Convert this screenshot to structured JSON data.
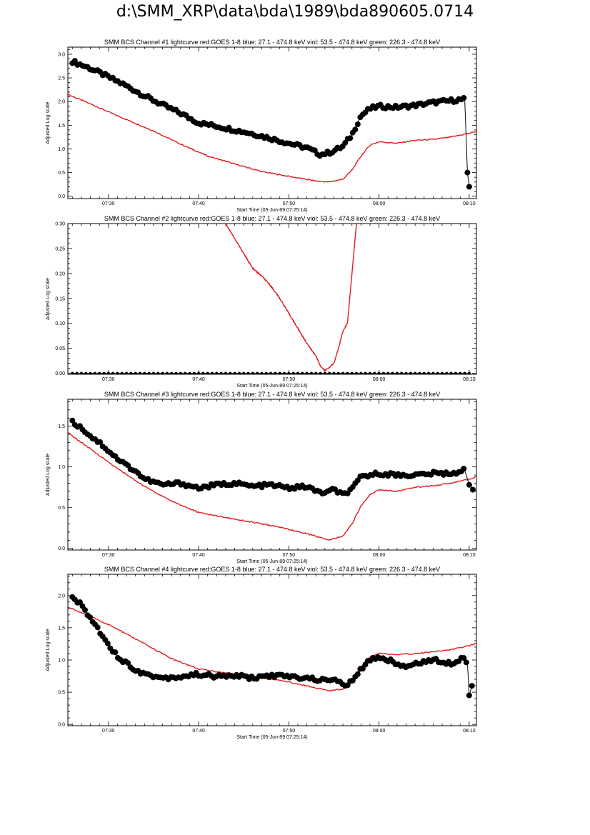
{
  "page_title": "d:\\SMM_XRP\\data\\bda\\1989\\bda890605.0714",
  "chart_data": [
    {
      "type": "line",
      "title": "SMM BCS Channel #1 lightcurve  red:GOES 1-8  blue: 27.1 - 474.8 keV  viol: 53.5 - 474.8 keV  green: 226.3 - 474.8 keV",
      "xlabel": "Start Time (05-Jun-89 07:25:14)",
      "ylabel": "Adjusted Log scale",
      "xlim": [
        25.5,
        70.8
      ],
      "ylim": [
        -0.05,
        3.15
      ],
      "xticks": [
        {
          "v": 30,
          "label": "07:30"
        },
        {
          "v": 40,
          "label": "07:40"
        },
        {
          "v": 50,
          "label": "07:50"
        },
        {
          "v": 60,
          "label": "08:00"
        },
        {
          "v": 70,
          "label": "08:10"
        }
      ],
      "yticks": [
        {
          "v": 0,
          "label": "0.0"
        },
        {
          "v": 0.5,
          "label": "0.5"
        },
        {
          "v": 1,
          "label": "1.0"
        },
        {
          "v": 1.5,
          "label": "1.5"
        },
        {
          "v": 2,
          "label": "2.0"
        },
        {
          "v": 2.5,
          "label": "2.5"
        },
        {
          "v": 3,
          "label": "3.0"
        }
      ],
      "series": [
        {
          "name": "GOES 1-8",
          "color": "#e31a1c",
          "style": "line",
          "x": [
            25.5,
            28,
            31,
            35,
            38,
            41,
            44,
            47,
            50,
            53,
            54.5,
            56,
            57,
            58,
            59,
            60,
            62,
            64,
            66,
            68,
            70,
            70.8
          ],
          "y": [
            2.15,
            1.95,
            1.7,
            1.38,
            1.1,
            0.85,
            0.68,
            0.52,
            0.42,
            0.32,
            0.3,
            0.36,
            0.55,
            0.85,
            1.08,
            1.15,
            1.12,
            1.18,
            1.2,
            1.25,
            1.33,
            1.37
          ]
        },
        {
          "name": "BCS",
          "color": "#000000",
          "style": "markers+line",
          "x": [
            26,
            28,
            30,
            32,
            34,
            36,
            38,
            40,
            42,
            44,
            46,
            48,
            50,
            52,
            53.5,
            54.5,
            56,
            57,
            58,
            59,
            60,
            62,
            64,
            66,
            68,
            69.5,
            69.8,
            70
          ],
          "y": [
            2.85,
            2.7,
            2.52,
            2.33,
            2.12,
            1.93,
            1.75,
            1.55,
            1.48,
            1.4,
            1.32,
            1.22,
            1.12,
            1.02,
            0.88,
            0.92,
            1.05,
            1.3,
            1.7,
            1.85,
            1.9,
            1.88,
            1.92,
            1.98,
            2.02,
            2.05,
            0.5,
            0.2
          ]
        }
      ]
    },
    {
      "type": "line",
      "title": "SMM BCS Channel #2 lightcurve  red:GOES 1-8  blue: 27.1 - 474.8 keV  viol: 53.5 - 474.8 keV  green: 226.3 - 474.8 keV",
      "xlabel": "Start Time (05-Jun-89 07:25:14)",
      "ylabel": "Adjusted Log scale",
      "xlim": [
        25.5,
        70.8
      ],
      "ylim": [
        -0.002,
        0.3
      ],
      "xticks": [
        {
          "v": 30,
          "label": "07:30"
        },
        {
          "v": 40,
          "label": "07:40"
        },
        {
          "v": 50,
          "label": "07:50"
        },
        {
          "v": 60,
          "label": "08:00"
        },
        {
          "v": 70,
          "label": "08:10"
        }
      ],
      "yticks": [
        {
          "v": 0,
          "label": "0.00"
        },
        {
          "v": 0.05,
          "label": "0.05"
        },
        {
          "v": 0.1,
          "label": "0.10"
        },
        {
          "v": 0.15,
          "label": "0.15"
        },
        {
          "v": 0.2,
          "label": "0.20"
        },
        {
          "v": 0.25,
          "label": "0.25"
        },
        {
          "v": 0.3,
          "label": "0.30"
        }
      ],
      "series": [
        {
          "name": "GOES 1-8",
          "color": "#e31a1c",
          "style": "line",
          "x": [
            43,
            44,
            45,
            46,
            47,
            48,
            49,
            50,
            51,
            52,
            53,
            53.5,
            54,
            54.5,
            55,
            55.5,
            56,
            56.5,
            57,
            57.5
          ],
          "y": [
            0.3,
            0.27,
            0.24,
            0.21,
            0.195,
            0.175,
            0.15,
            0.12,
            0.09,
            0.06,
            0.035,
            0.015,
            0.005,
            0.012,
            0.02,
            0.05,
            0.085,
            0.1,
            0.2,
            0.3
          ]
        },
        {
          "name": "BCS",
          "color": "#000000",
          "style": "markers+line",
          "x": [
            26,
            70
          ],
          "y": [
            0,
            0
          ]
        }
      ]
    },
    {
      "type": "line",
      "title": "SMM BCS Channel #3 lightcurve  red:GOES 1-8  blue: 27.1 - 474.8 keV  viol: 53.5 - 474.8 keV  green: 226.3 - 474.8 keV",
      "xlabel": "Start Time (05-Jun-89 07:25:14)",
      "ylabel": "Adjusted Log scale",
      "xlim": [
        25.5,
        70.8
      ],
      "ylim": [
        -0.02,
        1.83
      ],
      "xticks": [
        {
          "v": 30,
          "label": "07:30"
        },
        {
          "v": 40,
          "label": "07:40"
        },
        {
          "v": 50,
          "label": "07:50"
        },
        {
          "v": 60,
          "label": "08:00"
        },
        {
          "v": 70,
          "label": "08:10"
        }
      ],
      "yticks": [
        {
          "v": 0,
          "label": "0.0"
        },
        {
          "v": 0.5,
          "label": "0.5"
        },
        {
          "v": 1,
          "label": "1.0"
        },
        {
          "v": 1.5,
          "label": "1.5"
        }
      ],
      "series": [
        {
          "name": "GOES 1-8",
          "color": "#e31a1c",
          "style": "line",
          "x": [
            25.5,
            28,
            31,
            34,
            37,
            40,
            43,
            46,
            49,
            52,
            54.5,
            56,
            57,
            58,
            59,
            60,
            62,
            64,
            66,
            68,
            70,
            70.8
          ],
          "y": [
            1.42,
            1.22,
            0.98,
            0.76,
            0.58,
            0.44,
            0.38,
            0.32,
            0.26,
            0.18,
            0.1,
            0.15,
            0.3,
            0.52,
            0.66,
            0.72,
            0.7,
            0.75,
            0.77,
            0.8,
            0.85,
            0.88
          ]
        },
        {
          "name": "BCS",
          "color": "#000000",
          "style": "markers+line",
          "x": [
            26,
            27,
            28,
            29,
            30,
            31,
            32,
            33,
            34,
            36,
            38,
            40,
            42,
            44,
            46,
            48,
            50,
            52,
            53,
            54,
            55,
            56,
            57,
            58,
            59,
            60,
            62,
            64,
            66,
            68,
            69.5,
            70,
            70.4
          ],
          "y": [
            1.55,
            1.48,
            1.38,
            1.3,
            1.2,
            1.1,
            1.02,
            0.95,
            0.85,
            0.78,
            0.8,
            0.74,
            0.78,
            0.8,
            0.76,
            0.78,
            0.74,
            0.76,
            0.7,
            0.68,
            0.72,
            0.66,
            0.72,
            0.88,
            0.9,
            0.92,
            0.9,
            0.9,
            0.92,
            0.92,
            0.96,
            0.78,
            0.72
          ]
        }
      ]
    },
    {
      "type": "line",
      "title": "SMM BCS Channel #4 lightcurve  red:GOES 1-8  blue: 27.1 - 474.8 keV  viol: 53.5 - 474.8 keV  green: 226.3 - 474.8 keV",
      "xlabel": "Start Time (05-Jun-89 07:25:14)",
      "ylabel": "Adjusted Log scale",
      "xlim": [
        25.5,
        70.8
      ],
      "ylim": [
        -0.02,
        2.33
      ],
      "xticks": [
        {
          "v": 30,
          "label": "07:30"
        },
        {
          "v": 40,
          "label": "07:40"
        },
        {
          "v": 50,
          "label": "07:50"
        },
        {
          "v": 60,
          "label": "08:00"
        },
        {
          "v": 70,
          "label": "08:10"
        }
      ],
      "yticks": [
        {
          "v": 0,
          "label": "0.0"
        },
        {
          "v": 0.5,
          "label": "0.5"
        },
        {
          "v": 1,
          "label": "1.0"
        },
        {
          "v": 1.5,
          "label": "1.5"
        },
        {
          "v": 2,
          "label": "2.0"
        }
      ],
      "series": [
        {
          "name": "GOES 1-8",
          "color": "#e31a1c",
          "style": "line",
          "x": [
            25.5,
            28,
            31,
            34,
            37,
            40,
            43,
            46,
            49,
            52,
            54.5,
            56,
            57,
            58,
            59,
            60,
            62,
            64,
            66,
            68,
            70,
            70.8
          ],
          "y": [
            1.82,
            1.68,
            1.48,
            1.25,
            1.02,
            0.86,
            0.8,
            0.74,
            0.68,
            0.6,
            0.52,
            0.55,
            0.68,
            0.9,
            1.05,
            1.1,
            1.08,
            1.1,
            1.13,
            1.16,
            1.22,
            1.26
          ]
        },
        {
          "name": "BCS",
          "color": "#000000",
          "style": "markers+line",
          "x": [
            26,
            27,
            28,
            29,
            30,
            31,
            32,
            33,
            34,
            36,
            38,
            40,
            42,
            44,
            46,
            48,
            50,
            52,
            53,
            54,
            55,
            56,
            57,
            58,
            59,
            60,
            61,
            62,
            63,
            64,
            66,
            68,
            69.5,
            69.8,
            70,
            70.3
          ],
          "y": [
            1.98,
            1.85,
            1.65,
            1.45,
            1.25,
            1.05,
            0.95,
            0.85,
            0.78,
            0.72,
            0.74,
            0.78,
            0.74,
            0.76,
            0.72,
            0.76,
            0.74,
            0.72,
            0.7,
            0.68,
            0.72,
            0.6,
            0.66,
            0.85,
            1.0,
            1.05,
            1.0,
            0.95,
            0.88,
            0.95,
            1.0,
            0.95,
            1.05,
            0.95,
            0.45,
            0.6
          ]
        }
      ]
    }
  ]
}
